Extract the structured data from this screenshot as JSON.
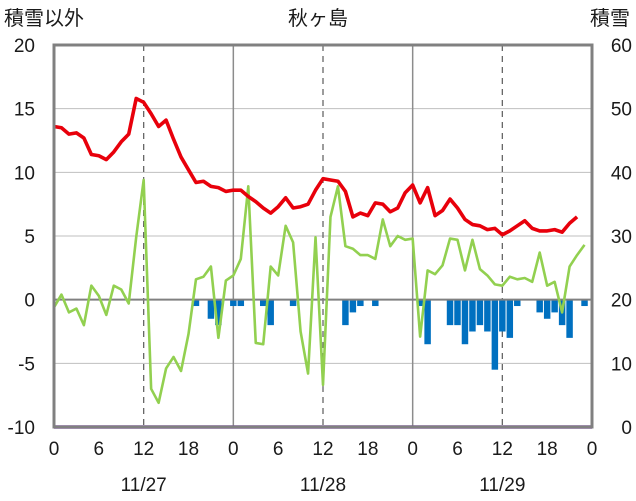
{
  "chart_data": {
    "type": "line",
    "title": "秋ヶ島",
    "left_axis_label": "積雪以外",
    "right_axis_label": "積雪",
    "left_ylim": [
      -10,
      20
    ],
    "left_ticks": [
      "20",
      "15",
      "10",
      "5",
      "0",
      "-5",
      "-10"
    ],
    "right_ylim": [
      0,
      60
    ],
    "right_ticks": [
      "60",
      "50",
      "40",
      "30",
      "20",
      "10",
      "0"
    ],
    "x_tick_labels": [
      "0",
      "6",
      "12",
      "18",
      "0",
      "6",
      "12",
      "18",
      "0",
      "6",
      "12",
      "18",
      "0"
    ],
    "date_labels": [
      "11/27",
      "11/28",
      "11/29"
    ],
    "x_range_hours": [
      0,
      72
    ],
    "grid": "vertical lines every 6 h (solid at midnight, dashed at noon); horizontal lines every 5 units",
    "colors": {
      "temperature": "#e8000b",
      "wind": "#92d050",
      "snow_change": "#0070c0",
      "snow_depth": "#7030a0",
      "zero_line": "#808080",
      "frame": "#808080"
    },
    "series": [
      {
        "key": "temperature",
        "axis": "left",
        "values": [
          13.6,
          13.5,
          13.0,
          13.1,
          12.7,
          11.4,
          11.3,
          11.0,
          11.6,
          12.4,
          13.0,
          15.8,
          15.5,
          14.6,
          13.6,
          14.1,
          12.6,
          11.2,
          10.2,
          9.2,
          9.3,
          8.9,
          8.8,
          8.5,
          8.6,
          8.6,
          8.1,
          7.7,
          7.2,
          6.8,
          7.3,
          8.0,
          7.2,
          7.3,
          7.5,
          8.6,
          9.5,
          9.4,
          9.3,
          8.5,
          6.5,
          6.8,
          6.6,
          7.6,
          7.5,
          6.9,
          7.2,
          8.4,
          9.0,
          7.6,
          8.8,
          6.6,
          7.0,
          7.9,
          7.2,
          6.3,
          5.9,
          5.8,
          5.5,
          5.6,
          5.1,
          5.4,
          5.8,
          6.2,
          5.6,
          5.4,
          5.4,
          5.5,
          5.3,
          6.0,
          6.5
        ]
      },
      {
        "key": "wind",
        "axis": "left",
        "values": [
          -0.6,
          0.4,
          -1.0,
          -0.7,
          -2.0,
          1.1,
          0.3,
          -1.2,
          1.1,
          0.8,
          -0.3,
          4.9,
          9.4,
          -7.0,
          -8.1,
          -5.4,
          -4.5,
          -5.6,
          -2.7,
          1.6,
          1.8,
          2.6,
          -3.0,
          1.5,
          1.9,
          3.2,
          8.9,
          -3.4,
          -3.5,
          2.6,
          1.9,
          5.8,
          4.5,
          -2.5,
          -5.8,
          4.9,
          -6.7,
          6.5,
          8.9,
          4.2,
          4.0,
          3.5,
          3.5,
          3.2,
          6.3,
          4.2,
          5.0,
          4.7,
          4.8,
          -2.9,
          2.3,
          2.0,
          2.7,
          4.8,
          4.7,
          2.3,
          4.7,
          2.4,
          1.9,
          1.2,
          1.1,
          1.8,
          1.6,
          1.7,
          1.4,
          3.7,
          1.1,
          1.4,
          -1.0,
          2.6,
          3.5,
          4.3
        ]
      },
      {
        "key": "snow_change",
        "axis": "left",
        "type": "bar",
        "hours": [
          19,
          21,
          22,
          24,
          25,
          28,
          29,
          32,
          39,
          40,
          41,
          43,
          49,
          50,
          53,
          54,
          55,
          56,
          57,
          58,
          59,
          60,
          61,
          62,
          65,
          66,
          67,
          68,
          69,
          71
        ],
        "values": [
          -0.5,
          -1.5,
          -2.0,
          -0.5,
          -0.5,
          -0.5,
          -2.0,
          -0.5,
          -2.0,
          -1.0,
          -0.5,
          -0.5,
          -0.5,
          -3.5,
          -2.0,
          -2.0,
          -3.5,
          -2.5,
          -2.0,
          -2.5,
          -5.5,
          -2.5,
          -3.0,
          -0.5,
          -1.0,
          -1.5,
          -1.0,
          -2.0,
          -3.0,
          -0.5
        ]
      },
      {
        "key": "snow_depth",
        "axis": "right",
        "values": [
          0,
          0
        ]
      }
    ]
  }
}
